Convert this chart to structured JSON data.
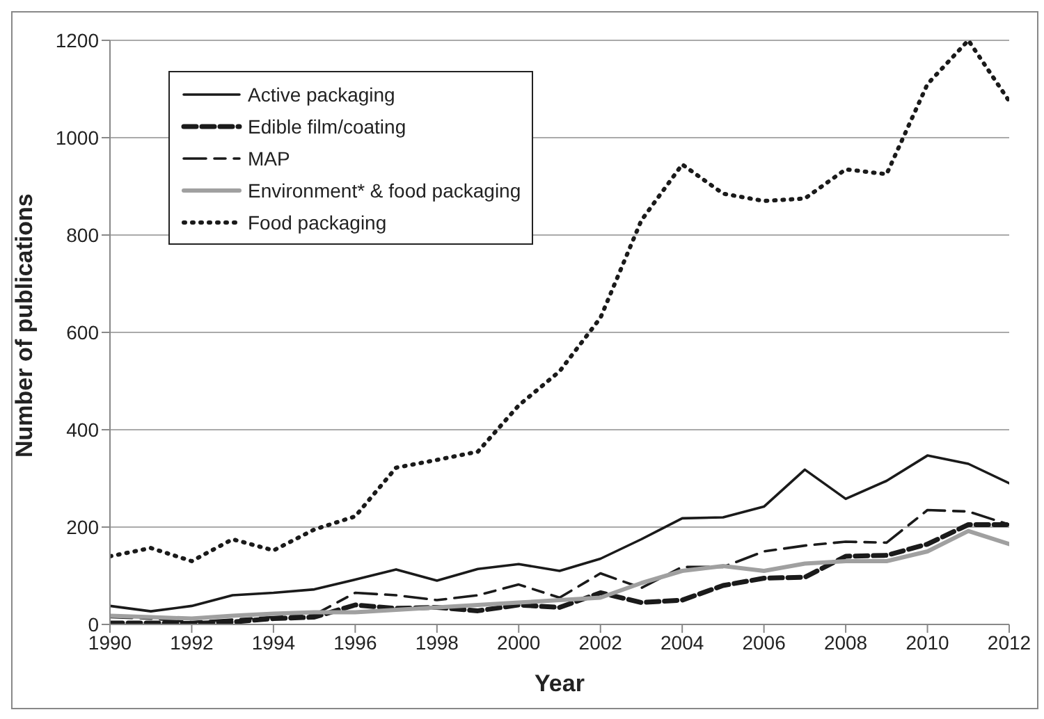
{
  "chart_data": {
    "type": "line",
    "xlabel": "Year",
    "ylabel": "Number of publications",
    "x": [
      1990,
      1991,
      1992,
      1993,
      1994,
      1995,
      1996,
      1997,
      1998,
      1999,
      2000,
      2001,
      2002,
      2003,
      2004,
      2005,
      2006,
      2007,
      2008,
      2009,
      2010,
      2011,
      2012
    ],
    "series": [
      {
        "name": "Active packaging",
        "color": "#1a1a1a",
        "line_style": "solid",
        "values": [
          38,
          27,
          38,
          60,
          65,
          72,
          92,
          113,
          90,
          114,
          124,
          110,
          135,
          175,
          218,
          220,
          242,
          318,
          258,
          295,
          347,
          330,
          290
        ]
      },
      {
        "name": "Edible film/coating",
        "color": "#1a1a1a",
        "line_style": "dashed",
        "values": [
          3,
          3,
          2,
          5,
          12,
          15,
          40,
          33,
          35,
          28,
          40,
          35,
          65,
          45,
          50,
          80,
          95,
          97,
          140,
          142,
          165,
          205,
          205
        ]
      },
      {
        "name": "MAP",
        "color": "#1a1a1a",
        "line_style": "dashed",
        "values": [
          15,
          12,
          5,
          10,
          15,
          20,
          65,
          60,
          50,
          60,
          82,
          55,
          105,
          75,
          118,
          118,
          150,
          162,
          170,
          168,
          235,
          232,
          205
        ]
      },
      {
        "name": "Environment* & food packaging",
        "color": "#a0a0a0",
        "line_style": "solid",
        "values": [
          18,
          15,
          12,
          18,
          22,
          25,
          25,
          30,
          35,
          40,
          45,
          50,
          55,
          85,
          110,
          120,
          110,
          125,
          130,
          130,
          150,
          192,
          165
        ]
      },
      {
        "name": "Food packaging",
        "color": "#1a1a1a",
        "line_style": "dotted",
        "values": [
          140,
          157,
          130,
          175,
          152,
          195,
          222,
          322,
          338,
          355,
          450,
          520,
          630,
          830,
          945,
          885,
          870,
          875,
          935,
          925,
          1110,
          1200,
          1075
        ]
      }
    ],
    "xlim": [
      1990,
      2012
    ],
    "xticks": [
      1990,
      1992,
      1994,
      1996,
      1998,
      2000,
      2002,
      2004,
      2006,
      2008,
      2010,
      2012
    ],
    "ylim": [
      0,
      1200
    ],
    "yticks": [
      0,
      200,
      400,
      600,
      800,
      1000,
      1200
    ],
    "grid": "y",
    "legend": "top left",
    "marker": "none"
  }
}
